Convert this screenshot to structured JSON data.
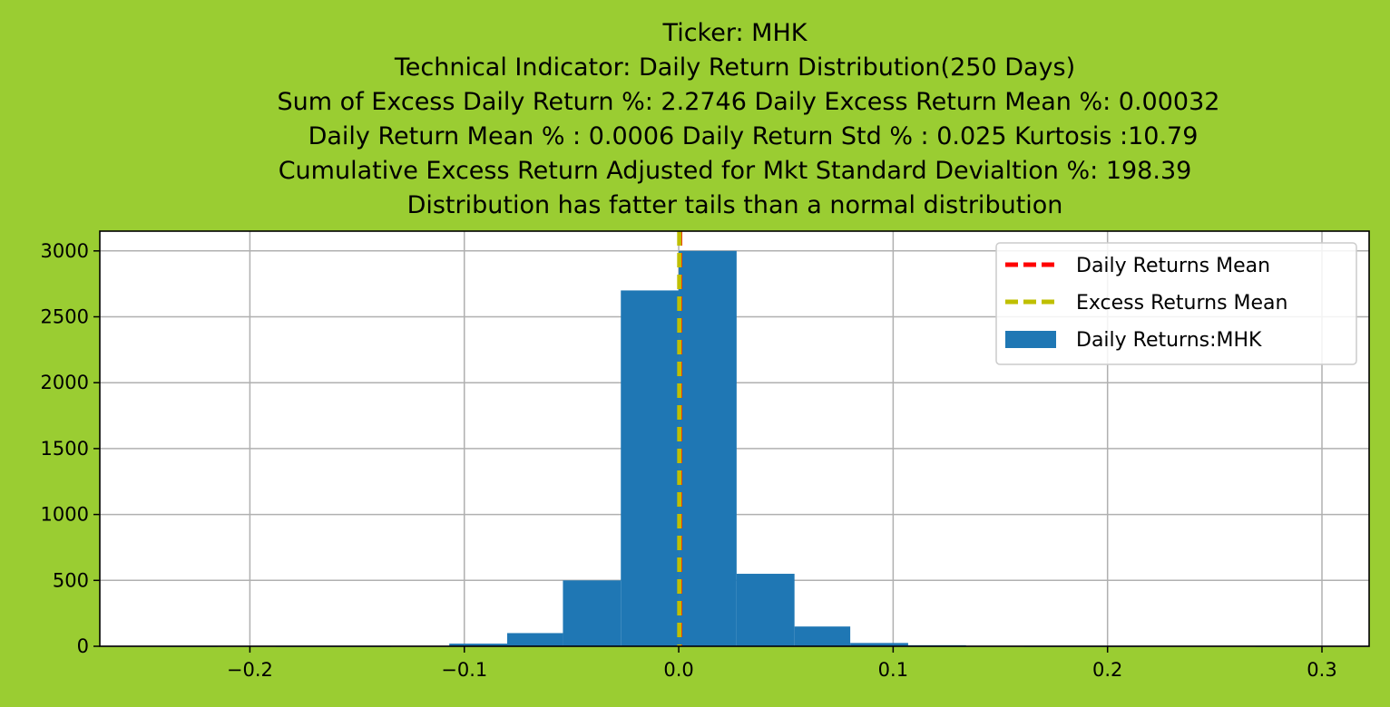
{
  "colors": {
    "figure_background": "#9acd32",
    "axes_background": "#ffffff",
    "histogram_bar": "#1f77b4",
    "daily_mean_line": "#ff0000",
    "excess_mean_line": "#bfbf00",
    "grid": "#b0b0b0"
  },
  "chart_data": {
    "type": "bar",
    "title_lines": [
      "Ticker: MHK",
      "Technical Indicator: Daily Return Distribution(250 Days)",
      "Sum of Excess Daily Return %: 2.2746   Daily Excess Return Mean %: 0.00032",
      "Daily Return Mean % : 0.0006    Daily Return Std % : 0.025  Kurtosis :10.79",
      "Cumulative Excess Return Adjusted for Mkt Standard Devialtion %: 198.39",
      "Distribution has fatter tails than a normal distribution"
    ],
    "xlabel": "",
    "ylabel": "",
    "xlim": [
      -0.27,
      0.322
    ],
    "ylim": [
      0,
      3150
    ],
    "x_ticks": [
      -0.2,
      -0.1,
      0.0,
      0.1,
      0.2,
      0.3
    ],
    "x_tick_labels": [
      "−0.2",
      "−0.1",
      "0.0",
      "0.1",
      "0.2",
      "0.3"
    ],
    "y_ticks": [
      0,
      500,
      1000,
      1500,
      2000,
      2500,
      3000
    ],
    "y_tick_labels": [
      "0",
      "500",
      "1000",
      "1500",
      "2000",
      "2500",
      "3000"
    ],
    "grid": true,
    "legend_position": "top-right",
    "legend": [
      {
        "label": "Daily Returns Mean",
        "kind": "dashed-line",
        "color": "#ff0000"
      },
      {
        "label": "Excess Returns Mean",
        "kind": "dashed-line",
        "color": "#bfbf00"
      },
      {
        "label": "Daily Returns:MHK",
        "kind": "patch",
        "color": "#1f77b4"
      }
    ],
    "histogram": {
      "name": "Daily Returns:MHK",
      "bins": [
        {
          "x0": -0.242,
          "x1": -0.215,
          "count": 1
        },
        {
          "x0": -0.215,
          "x1": -0.188,
          "count": 0
        },
        {
          "x0": -0.188,
          "x1": -0.161,
          "count": 1
        },
        {
          "x0": -0.161,
          "x1": -0.134,
          "count": 1
        },
        {
          "x0": -0.134,
          "x1": -0.107,
          "count": 3
        },
        {
          "x0": -0.107,
          "x1": -0.08,
          "count": 20
        },
        {
          "x0": -0.08,
          "x1": -0.054,
          "count": 100
        },
        {
          "x0": -0.054,
          "x1": -0.027,
          "count": 500
        },
        {
          "x0": -0.027,
          "x1": 0.0,
          "count": 2700
        },
        {
          "x0": 0.0,
          "x1": 0.027,
          "count": 3000
        },
        {
          "x0": 0.027,
          "x1": 0.054,
          "count": 550
        },
        {
          "x0": 0.054,
          "x1": 0.08,
          "count": 150
        },
        {
          "x0": 0.08,
          "x1": 0.107,
          "count": 25
        },
        {
          "x0": 0.107,
          "x1": 0.134,
          "count": 8
        },
        {
          "x0": 0.134,
          "x1": 0.161,
          "count": 2
        },
        {
          "x0": 0.161,
          "x1": 0.188,
          "count": 1
        },
        {
          "x0": 0.188,
          "x1": 0.215,
          "count": 1
        },
        {
          "x0": 0.215,
          "x1": 0.242,
          "count": 0
        },
        {
          "x0": 0.242,
          "x1": 0.269,
          "count": 0
        },
        {
          "x0": 0.269,
          "x1": 0.296,
          "count": 1
        }
      ]
    },
    "vlines": [
      {
        "name": "Daily Returns Mean",
        "x": 0.0006,
        "color": "#ff0000"
      },
      {
        "name": "Excess Returns Mean",
        "x": 0.00032,
        "color": "#bfbf00"
      }
    ]
  }
}
